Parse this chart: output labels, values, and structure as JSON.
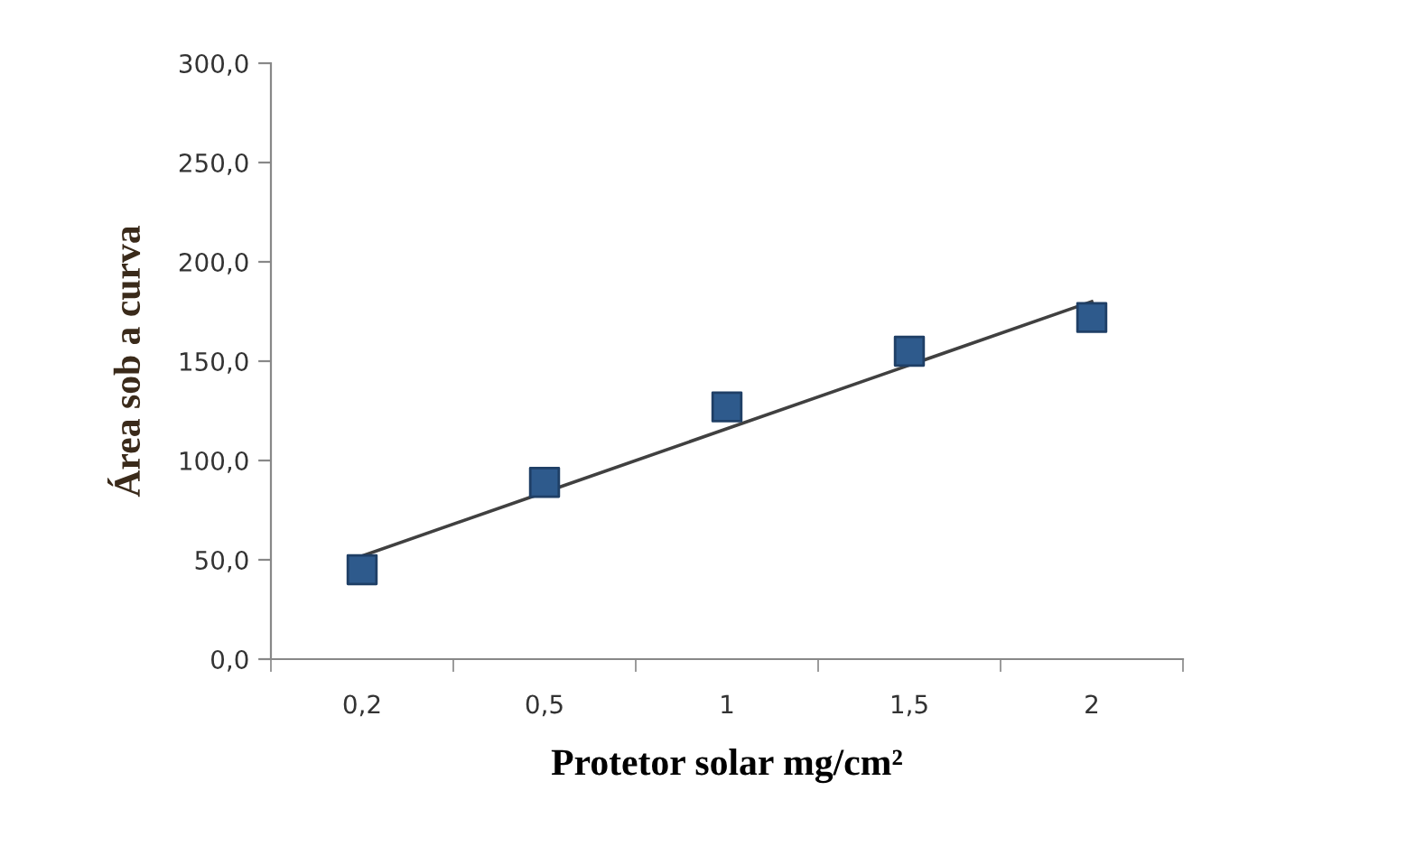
{
  "chart_data": {
    "type": "scatter",
    "xlabel": "Protetor solar mg/cm²",
    "ylabel": "Área sob a curva",
    "categories": [
      "0,2",
      "0,5",
      "1",
      "1,5",
      "2"
    ],
    "series": [
      {
        "color": "#2e5a8c",
        "marker": "square",
        "values": [
          45,
          89,
          127,
          155,
          172
        ]
      },
      {
        "type": "line",
        "color": "#404040",
        "marker": "none",
        "line_style": "solid",
        "values": [
          52,
          84,
          116,
          148,
          180
        ]
      }
    ],
    "ylim": [
      0,
      300
    ],
    "yticks": [
      {
        "value": 0,
        "label": "0,0"
      },
      {
        "value": 50,
        "label": "50,0"
      },
      {
        "value": 100,
        "label": "100,0"
      },
      {
        "value": 150,
        "label": "150,0"
      },
      {
        "value": 200,
        "label": "200,0"
      },
      {
        "value": 250,
        "label": "250,0"
      },
      {
        "value": 300,
        "label": "300,0"
      }
    ],
    "grid": false,
    "legend": false
  }
}
